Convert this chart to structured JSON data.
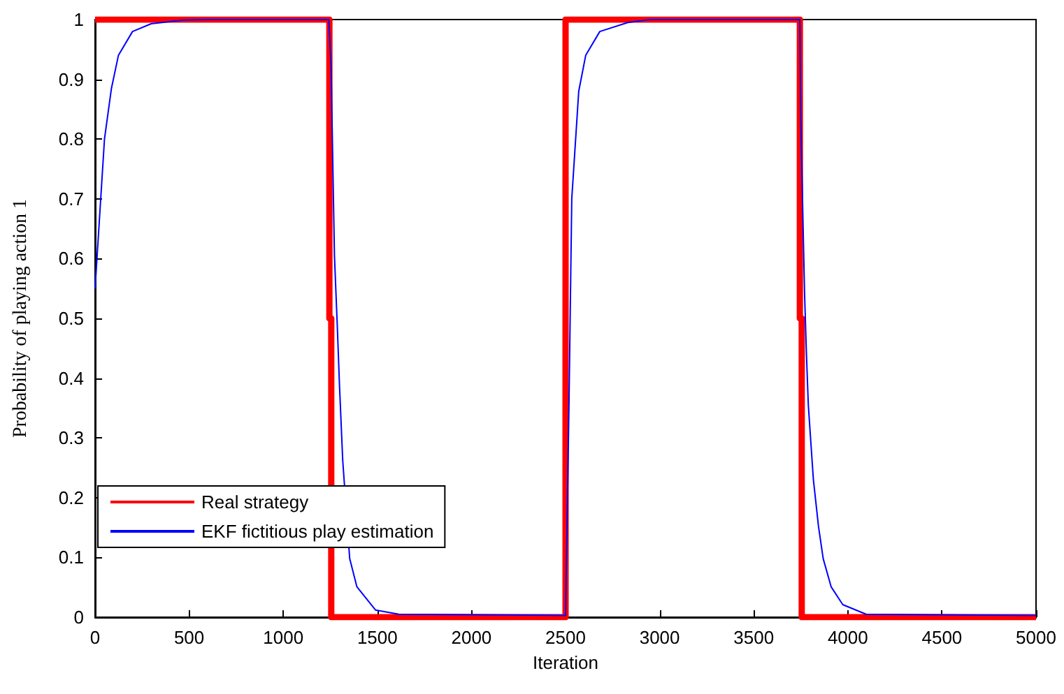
{
  "chart_data": {
    "type": "line",
    "xlabel": "Iteration",
    "ylabel": "Probability of playing action 1",
    "xlim": [
      0,
      5000
    ],
    "xticks": [
      0,
      500,
      1000,
      1500,
      2000,
      2500,
      3000,
      3500,
      4000,
      4500,
      5000
    ],
    "ylim": [
      0,
      1
    ],
    "yticks": [
      0,
      0.1,
      0.2,
      0.3,
      0.4,
      0.5,
      0.6,
      0.7,
      0.8,
      0.9,
      1
    ],
    "grid": false,
    "legend": "bottom left",
    "marker": "none",
    "line_style": "solid",
    "series": [
      {
        "name": "Real strategy",
        "color": "#ff0000",
        "x": [
          0,
          1245,
          1245,
          1255,
          1255,
          2500,
          2500,
          3745,
          3745,
          3755,
          3755,
          5000
        ],
        "values": [
          1,
          1,
          0.5,
          0.5,
          0,
          0,
          1,
          1,
          0.5,
          0.5,
          0,
          0
        ]
      },
      {
        "name": "EKF fictitious play estimation",
        "color": "#0000ff",
        "x": [
          0,
          25,
          50,
          87,
          124,
          199,
          298,
          470,
          600,
          1242,
          1254,
          1272,
          1287,
          1299,
          1316,
          1353,
          1391,
          1490,
          1614,
          2500,
          2518,
          2533,
          2570,
          2607,
          2682,
          2831,
          2950,
          3745,
          3750,
          3770,
          3780,
          3790,
          3805,
          3817,
          3844,
          3869,
          3911,
          3973,
          4097,
          5000
        ],
        "values": [
          0.55,
          0.675,
          0.8,
          0.885,
          0.94,
          0.98,
          0.993,
          0.999,
          1,
          1,
          0.923,
          0.605,
          0.488,
          0.386,
          0.262,
          0.098,
          0.051,
          0.012,
          0.005,
          0.003,
          0.35,
          0.7,
          0.88,
          0.94,
          0.98,
          0.995,
          1,
          1,
          0.83,
          0.542,
          0.44,
          0.355,
          0.285,
          0.23,
          0.152,
          0.098,
          0.051,
          0.021,
          0.005,
          0.003
        ]
      }
    ]
  }
}
